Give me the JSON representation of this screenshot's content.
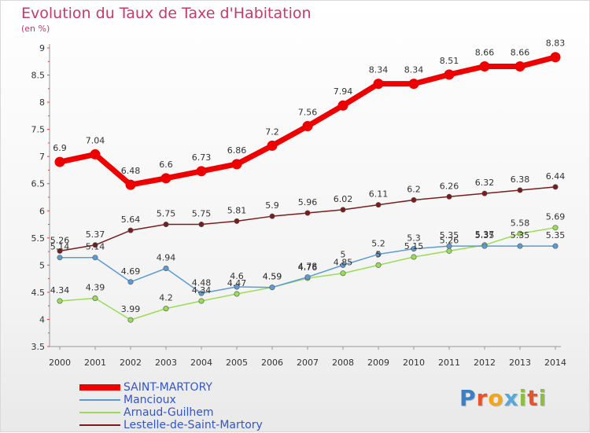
{
  "header": {
    "title": "Evolution du Taux de Taxe d'Habitation",
    "unit": "(en %)"
  },
  "logo": {
    "text": "Proxiti",
    "letters": [
      {
        "ch": "P",
        "color": "#3b7fc4"
      },
      {
        "ch": "r",
        "color": "#e8542a"
      },
      {
        "ch": "o",
        "color": "#f2a516"
      },
      {
        "ch": "x",
        "color": "#57a8d8"
      },
      {
        "ch": "i",
        "color": "#8cbf3f"
      },
      {
        "ch": "t",
        "color": "#e8542a"
      },
      {
        "ch": "i",
        "color": "#8cbf3f"
      }
    ]
  },
  "chart_data": {
    "type": "line",
    "x": [
      "2000",
      "2001",
      "2002",
      "2003",
      "2004",
      "2005",
      "2006",
      "2007",
      "2008",
      "2009",
      "2010",
      "2011",
      "2012",
      "2013",
      "2014"
    ],
    "ylim": [
      3.5,
      9
    ],
    "y_ticks": [
      "3.5",
      "4",
      "4.5",
      "5",
      "5.5",
      "6",
      "6.5",
      "7",
      "7.5",
      "8",
      "8.5",
      "9"
    ],
    "grid": false,
    "legend_position": "bottom-left",
    "series": [
      {
        "name": "SAINT-MARTORY",
        "color": "#ee0000",
        "labels": [
          "6.9",
          "7.04",
          "6.48",
          "6.6",
          "6.73",
          "6.86",
          "7.2",
          "7.56",
          "7.94",
          "8.34",
          "8.34",
          "8.51",
          "8.66",
          "8.66",
          "8.83"
        ],
        "values": [
          6.9,
          7.04,
          6.48,
          6.6,
          6.73,
          6.86,
          7.2,
          7.56,
          7.94,
          8.34,
          8.34,
          8.51,
          8.66,
          8.66,
          8.83
        ]
      },
      {
        "name": "Mancioux",
        "color": "#5b9bd5",
        "labels": [
          "5.14",
          "5.14",
          "4.69",
          "4.94",
          "4.48",
          "4.6",
          "4.59",
          "4.78",
          "5",
          "5.2",
          "5.3",
          "5.35",
          "5.35",
          "5.35",
          "5.35"
        ],
        "values": [
          5.14,
          5.14,
          4.69,
          4.94,
          4.48,
          4.6,
          4.59,
          4.78,
          5,
          5.2,
          5.3,
          5.35,
          5.35,
          5.35,
          5.35
        ]
      },
      {
        "name": "Arnaud-Guilhem",
        "color": "#99dd55",
        "labels": [
          "4.34",
          "4.39",
          "3.99",
          "4.2",
          "4.34",
          "4.47",
          "4.59",
          "4.76",
          "4.85",
          "5",
          "5.15",
          "5.26",
          "5.37",
          "5.58",
          "5.69"
        ],
        "values": [
          4.34,
          4.39,
          3.99,
          4.2,
          4.34,
          4.47,
          4.59,
          4.76,
          4.85,
          5,
          5.15,
          5.26,
          5.37,
          5.58,
          5.69
        ]
      },
      {
        "name": "Lestelle-de-Saint-Martory",
        "color": "#7a1c1c",
        "labels": [
          "5.26",
          "5.37",
          "5.64",
          "5.75",
          "5.75",
          "5.81",
          "5.9",
          "5.96",
          "6.02",
          "6.11",
          "6.2",
          "6.26",
          "6.32",
          "6.38",
          "6.44"
        ],
        "values": [
          5.26,
          5.37,
          5.64,
          5.75,
          5.75,
          5.81,
          5.9,
          5.96,
          6.02,
          6.11,
          6.2,
          6.26,
          6.32,
          6.38,
          6.44
        ]
      }
    ]
  }
}
